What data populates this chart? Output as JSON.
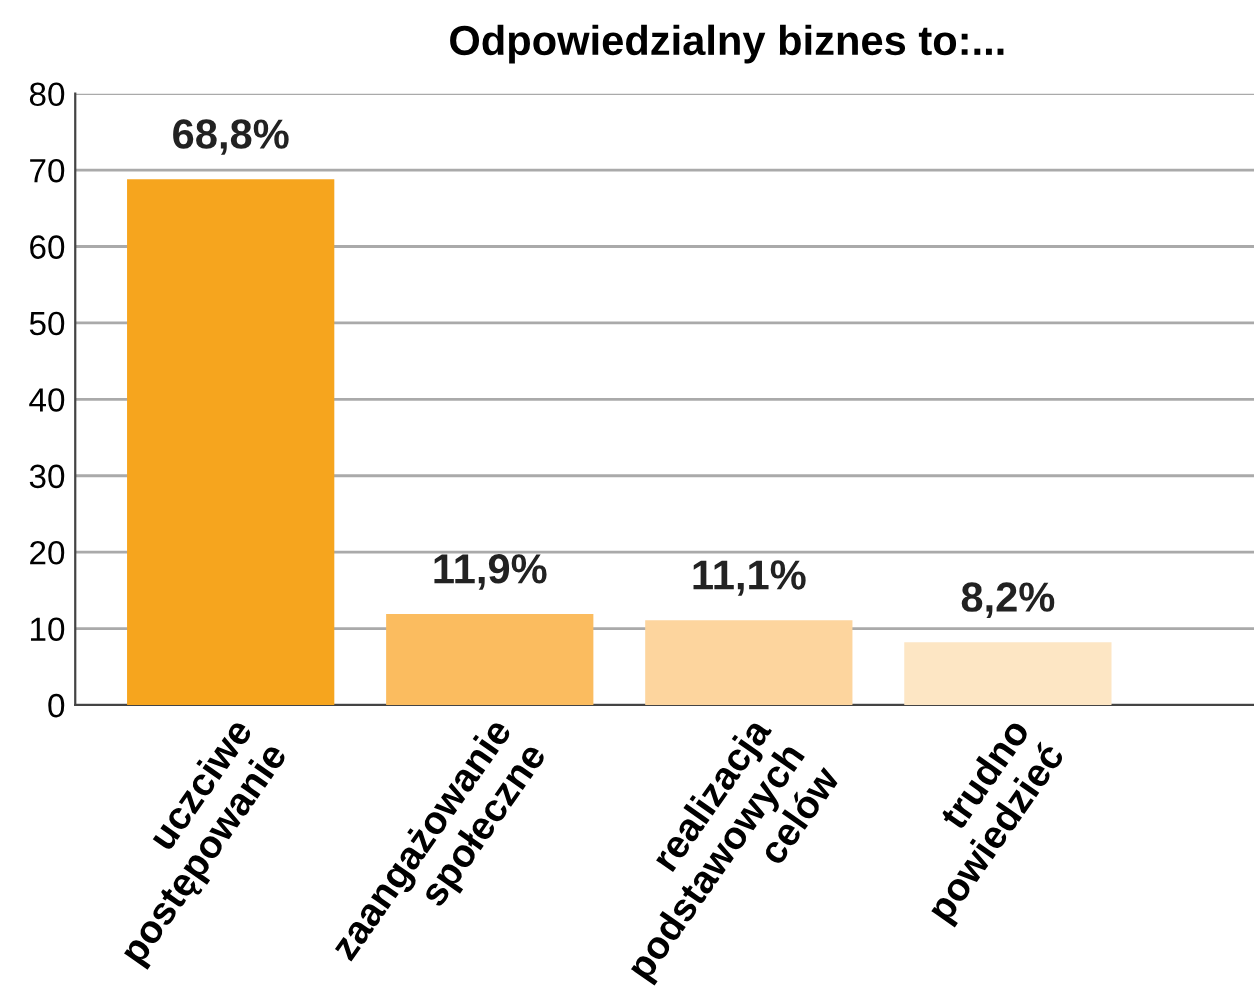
{
  "chart_data": {
    "type": "bar",
    "title": "Odpowiedzialny biznes to:...",
    "categories": [
      "uczciwe\npostępowanie",
      "zaangażowanie\nspołeczne",
      "realizacja\npodstawowych\ncelów",
      "trudno\npowiedzieć"
    ],
    "values": [
      68.8,
      11.9,
      11.1,
      8.2
    ],
    "colors": [
      "#f6a51e",
      "#fbbc5f",
      "#fdd59e",
      "#fde6c4"
    ],
    "value_labels": [
      "68,8%",
      "11,9%",
      "11,1%",
      "8,2%"
    ],
    "ylim": [
      0,
      80
    ],
    "yticks": [
      0,
      10,
      20,
      30,
      40,
      50,
      60,
      70,
      80
    ],
    "grid": "y"
  }
}
